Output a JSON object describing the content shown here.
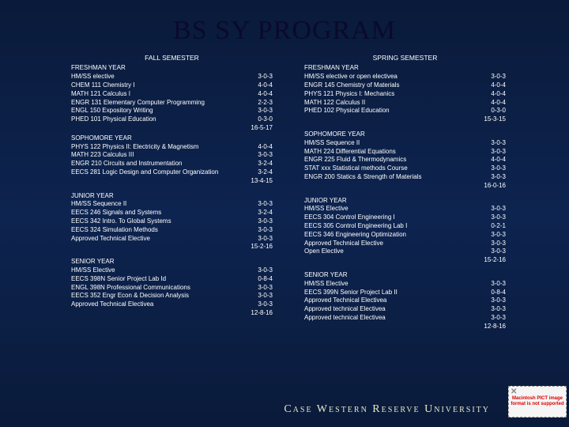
{
  "title": "BS SY PROGRAM",
  "university": "Case Western Reserve University",
  "pict": "Macintosh PICT image format is not supported",
  "left": {
    "header": "FALL SEMESTER",
    "freshman": {
      "label": "FRESHMAN YEAR",
      "r1": {
        "l": "HM/SS elective",
        "c": "3-0-3"
      },
      "r2": {
        "l": "CHEM 111 Chemistry I",
        "c": "4-0-4"
      },
      "r3": {
        "l": "MATH 121 Calculus I",
        "c": "4-0-4"
      },
      "r4": {
        "l": "ENGR 131 Elementary Computer Programming",
        "c": "2-2-3"
      },
      "r5": {
        "l": "ENGL 150 Expository Writing",
        "c": "3-0-3"
      },
      "r6": {
        "l": "PHED 101 Physical Education",
        "c": "0-3-0"
      },
      "total": "16-5-17"
    },
    "sophomore": {
      "label": "SOPHOMORE YEAR",
      "r1": {
        "l": "PHYS 122 Physics II: Electricity & Magnetism",
        "c": "4-0-4"
      },
      "r2": {
        "l": "MATH 223 Calculus III",
        "c": "3-0-3"
      },
      "r3": {
        "l": "ENGR 210 Circuits and Instrumentation",
        "c": "3-2-4"
      },
      "r4": {
        "l": "EECS 281 Logic Design and Computer Organization",
        "c": "3-2-4"
      },
      "total": "13-4-15"
    },
    "junior": {
      "label": "JUNIOR YEAR",
      "r1": {
        "l": "HM/SS Sequence II",
        "c": "3-0-3"
      },
      "r2": {
        "l": "EECS 246 Signals and Systems",
        "c": "3-2-4"
      },
      "r3": {
        "l": "EECS 342 Intro. To Global Systems",
        "c": "3-0-3"
      },
      "r4": {
        "l": "EECS 324 Simulation Methods",
        "c": "3-0-3"
      },
      "r5": {
        "l": "Approved Technical Elective",
        "c": "3-0-3"
      },
      "total": "15-2-16"
    },
    "senior": {
      "label": "SENIOR YEAR",
      "r1": {
        "l": "HM/SS Elective",
        "c": "3-0-3"
      },
      "r2": {
        "l": "EECS 398N Senior Project Lab Id",
        "c": "0-8-4"
      },
      "r3": {
        "l": "ENGL 398N Professional Communications",
        "c": "3-0-3"
      },
      "r4": {
        "l": "EECS 352 Engr Econ & Decision Analysis",
        "c": "3-0-3"
      },
      "r5": {
        "l": "Approved Technical Electivea",
        "c": "3-0-3"
      },
      "total": "12-8-16"
    }
  },
  "right": {
    "header": "SPRING SEMESTER",
    "freshman": {
      "label": "FRESHMAN YEAR",
      "r1": {
        "l": "HM/SS elective or open electivea",
        "c": "3-0-3"
      },
      "r2": {
        "l": "ENGR 145 Chemistry of Materials",
        "c": "4-0-4"
      },
      "r3": {
        "l": "PHYS 121 Physics I: Mechanics",
        "c": "4-0-4"
      },
      "r4": {
        "l": "MATH 122 Calculus II",
        "c": "4-0-4"
      },
      "r5": {
        "l": "PHED 102 Physical Education",
        "c": "0-3-0"
      },
      "total": "15-3-15"
    },
    "sophomore": {
      "label": "SOPHOMORE YEAR",
      "r1": {
        "l": "HM/SS Sequence II",
        "c": "3-0-3"
      },
      "r2": {
        "l": "MATH 224 Differential Equations",
        "c": "3-0-3"
      },
      "r3": {
        "l": "ENGR 225 Fluid & Thermodynamics",
        "c": "4-0-4"
      },
      "r4": {
        "l": "STAT xxx Statistical methods Course",
        "c": "3-0-3"
      },
      "r5": {
        "l": "ENGR 200 Statics & Strength of Materials",
        "c": "3-0-3"
      },
      "total": "16-0-16"
    },
    "junior": {
      "label": "JUNIOR YEAR",
      "r1": {
        "l": "HM/SS Elective",
        "c": "3-0-3"
      },
      "r2": {
        "l": "EECS 304 Control Engineering I",
        "c": "3-0-3"
      },
      "r3": {
        "l": "EECS 305 Control Engineering Lab I",
        "c": "0-2-1"
      },
      "r4": {
        "l": "EECS 346 Engineering Optimization",
        "c": "3-0-3"
      },
      "r5": {
        "l": "Approved Technical Elective",
        "c": "3-0-3"
      },
      "r6": {
        "l": "Open Elective",
        "c": "3-0-3"
      },
      "total": "15-2-16"
    },
    "senior": {
      "label": "SENIOR YEAR",
      "r1": {
        "l": "HM/SS Elective",
        "c": "3-0-3"
      },
      "r2": {
        "l": "EECS 399N Senior Project Lab II",
        "c": "0-8-4"
      },
      "r3": {
        "l": "Approved Technical Electivea",
        "c": "3-0-3"
      },
      "r4": {
        "l": "Approved technical Electivea",
        "c": "3-0-3"
      },
      "r5": {
        "l": "Approved technical Electivea",
        "c": "3-0-3"
      },
      "total": "12-8-16"
    }
  }
}
